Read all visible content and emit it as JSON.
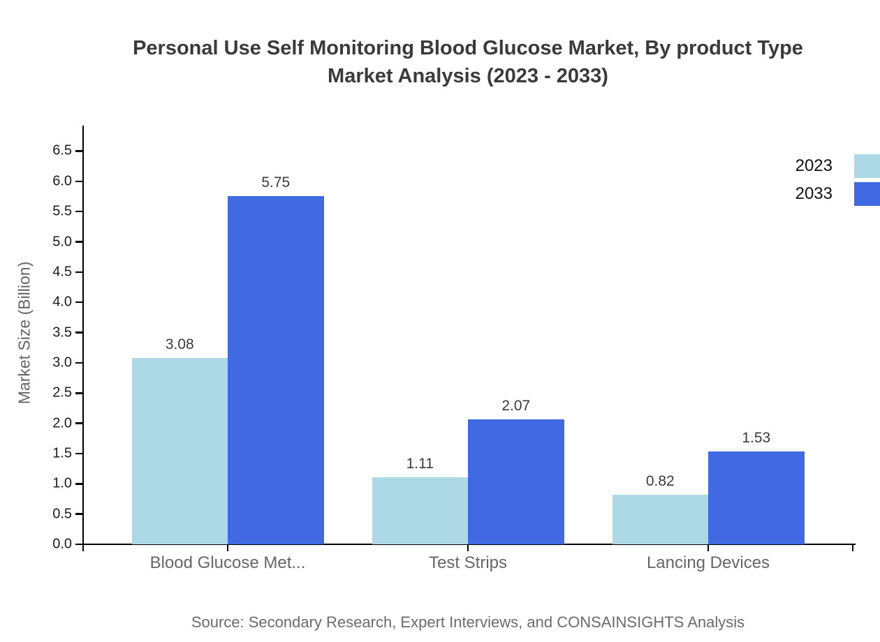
{
  "title": {
    "line1": "Personal Use Self Monitoring Blood Glucose Market, By product Type",
    "line2": "Market Analysis (2023 - 2033)"
  },
  "axes": {
    "y_label": "Market Size (Billion)",
    "y_ticks": [
      "0.0",
      "0.5",
      "1.0",
      "1.5",
      "2.0",
      "2.5",
      "3.0",
      "3.5",
      "4.0",
      "4.5",
      "5.0",
      "5.5",
      "6.0",
      "6.5"
    ]
  },
  "legend": {
    "items": [
      {
        "label": "2023",
        "color": "#ADD8E6"
      },
      {
        "label": "2033",
        "color": "#4169E1"
      }
    ]
  },
  "source": "Source: Secondary Research, Expert Interviews, and CONSAINSIGHTS Analysis",
  "chart_data": {
    "type": "bar",
    "title": "Personal Use Self Monitoring Blood Glucose Market, By product Type Market Analysis (2023 - 2033)",
    "categories": [
      "Blood Glucose Met...",
      "Test Strips",
      "Lancing Devices"
    ],
    "series": [
      {
        "name": "2023",
        "color": "#ADD8E6",
        "values": [
          3.08,
          1.11,
          0.82
        ]
      },
      {
        "name": "2033",
        "color": "#4169E1",
        "values": [
          5.75,
          2.07,
          1.53
        ]
      }
    ],
    "xlabel": "",
    "ylabel": "Market Size (Billion)",
    "ylim": [
      0,
      6.9
    ],
    "ytick_step": 0.5,
    "value_labels": true,
    "grid": false,
    "legend_position": "top-right-outside"
  }
}
